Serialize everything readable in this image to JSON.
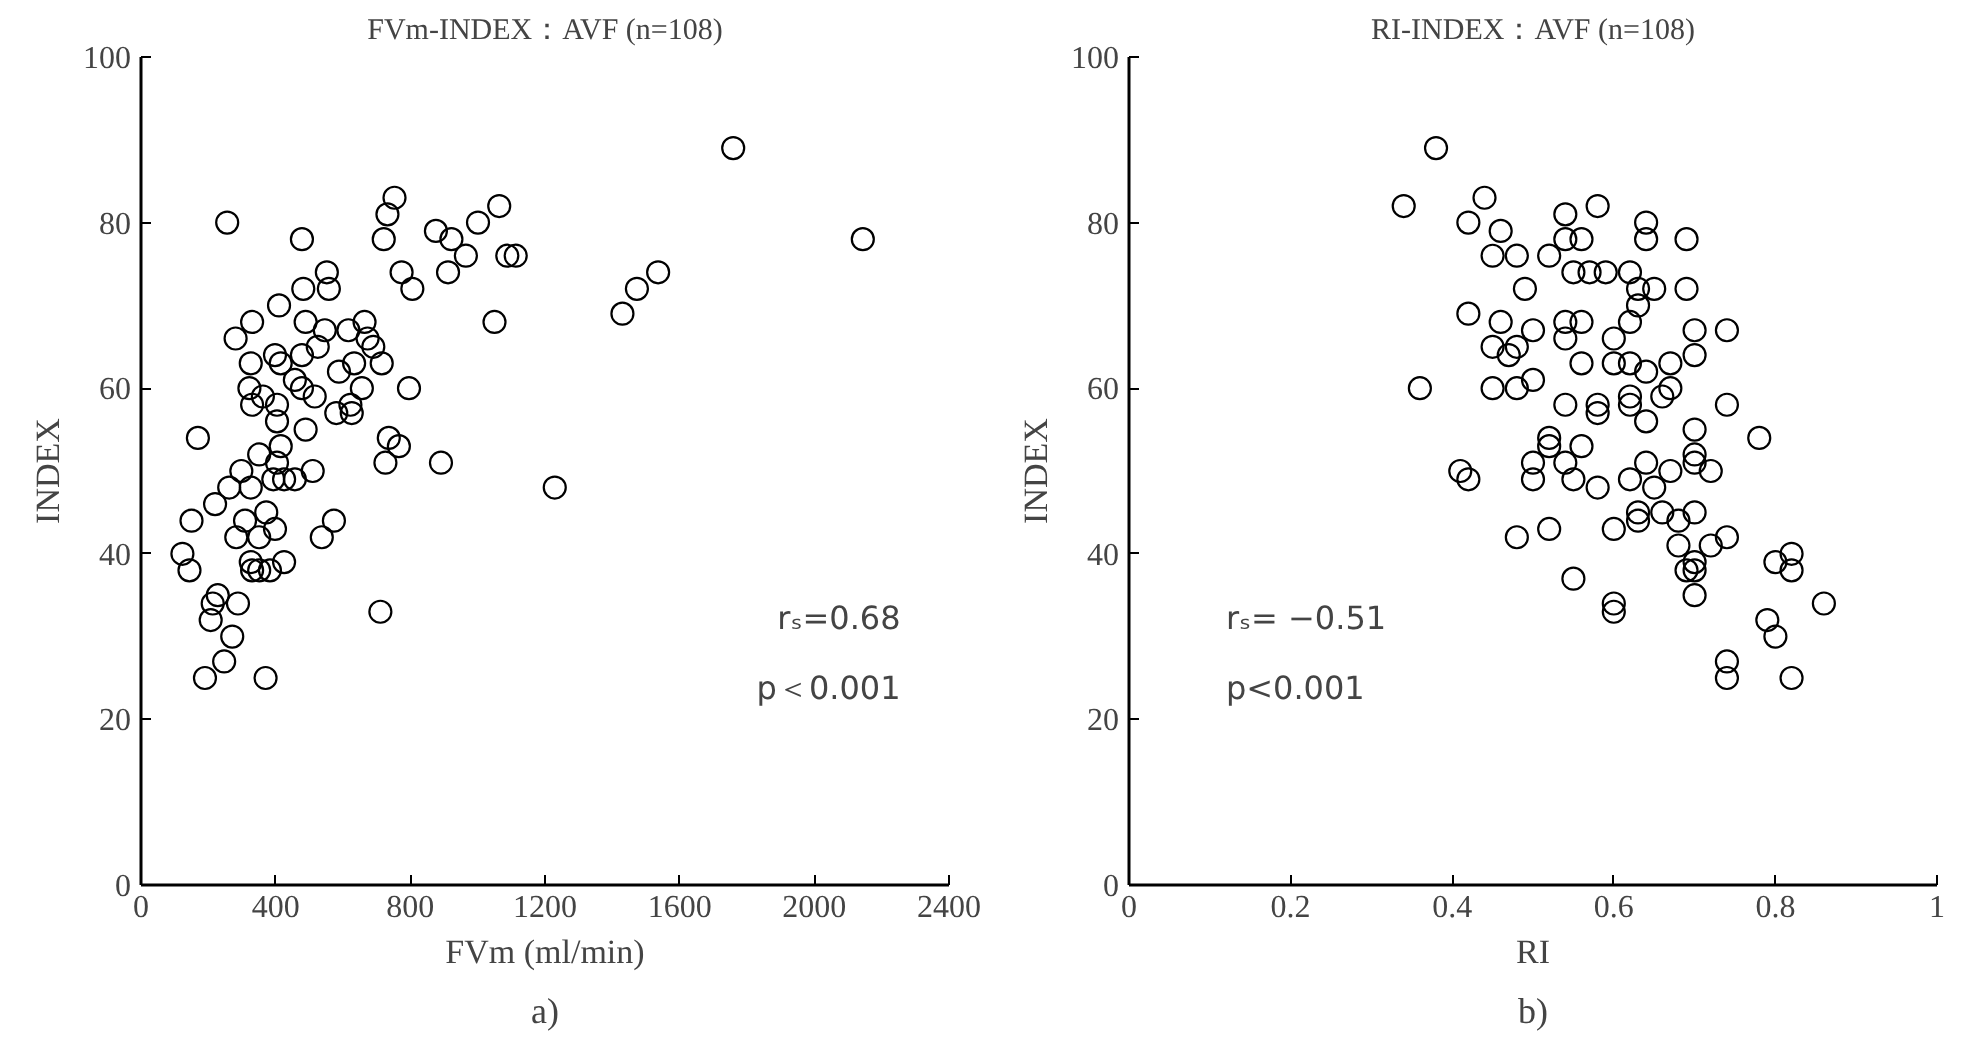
{
  "chart_data": [
    {
      "type": "scatter",
      "title": "FVm-INDEX：AVF (n=108)",
      "xlabel": "FVm (ml/min)",
      "ylabel": "INDEX",
      "xlim": [
        0,
        2400
      ],
      "xticks": [
        0,
        400,
        800,
        1200,
        1600,
        2000,
        2400
      ],
      "ylim": [
        0,
        100
      ],
      "yticks": [
        0,
        20,
        40,
        60,
        80,
        100
      ],
      "marker": "circle",
      "annotations": [
        "rₛ=0.68",
        "p＜0.001",
        "a)"
      ],
      "series": [
        {
          "color": "#000000",
          "x": [
            256,
            478,
            753,
            732,
            721,
            876,
            922,
            1001,
            1064,
            965,
            912,
            774,
            806,
            1088,
            1113,
            552,
            558,
            482,
            410,
            330,
            281,
            489,
            546,
            616,
            664,
            673,
            690,
            715,
            1050,
            1430,
            1473,
            1536,
            326,
            398,
            415,
            478,
            525,
            588,
            633,
            656,
            796,
            322,
            330,
            362,
            404,
            457,
            478,
            516,
            580,
            622,
            626,
            169,
            404,
            415,
            489,
            736,
            766,
            726,
            891,
            351,
            298,
            404,
            425,
            457,
            510,
            262,
            326,
            393,
            220,
            150,
            309,
            372,
            398,
            283,
            351,
            537,
            573,
            123,
            144,
            326,
            330,
            351,
            383,
            425,
            1229,
            228,
            213,
            288,
            207,
            271,
            711,
            247,
            190,
            370,
            1759,
            2144
          ],
          "values": [
            80,
            78,
            83,
            81,
            78,
            79,
            78,
            80,
            82,
            76,
            74,
            74,
            72,
            76,
            76,
            74,
            72,
            72,
            70,
            68,
            66,
            68,
            67,
            67,
            68,
            66,
            65,
            63,
            68,
            69,
            72,
            74,
            63,
            64,
            63,
            64,
            65,
            62,
            63,
            60,
            60,
            60,
            58,
            59,
            58,
            61,
            60,
            59,
            57,
            58,
            57,
            54,
            56,
            53,
            55,
            54,
            53,
            51,
            51,
            52,
            50,
            51,
            49,
            49,
            50,
            48,
            48,
            49,
            46,
            44,
            44,
            45,
            43,
            42,
            42,
            42,
            44,
            40,
            38,
            39,
            38,
            38,
            38,
            39,
            48,
            35,
            34,
            34,
            32,
            30,
            33,
            27,
            25,
            25,
            89,
            78
          ]
        }
      ]
    },
    {
      "type": "scatter",
      "title": "RI-INDEX：AVF (n=108)",
      "xlabel": "RI",
      "ylabel": "INDEX",
      "xlim": [
        0,
        1
      ],
      "xticks": [
        0,
        0.2,
        0.4,
        0.6,
        0.8,
        1
      ],
      "ylim": [
        0,
        100
      ],
      "yticks": [
        0,
        20,
        40,
        60,
        80,
        100
      ],
      "marker": "circle",
      "annotations": [
        "rₛ= −0.51",
        "p<0.001",
        "b)"
      ],
      "series": [
        {
          "color": "#000000",
          "x": [
            0.38,
            0.34,
            0.42,
            0.44,
            0.46,
            0.45,
            0.48,
            0.49,
            0.42,
            0.46,
            0.45,
            0.48,
            0.47,
            0.5,
            0.36,
            0.45,
            0.48,
            0.5,
            0.41,
            0.42,
            0.48,
            0.5,
            0.5,
            0.54,
            0.58,
            0.52,
            0.54,
            0.56,
            0.55,
            0.57,
            0.59,
            0.62,
            0.64,
            0.64,
            0.69,
            0.63,
            0.65,
            0.63,
            0.69,
            0.62,
            0.54,
            0.56,
            0.54,
            0.6,
            0.56,
            0.6,
            0.62,
            0.64,
            0.67,
            0.7,
            0.7,
            0.74,
            0.54,
            0.58,
            0.58,
            0.62,
            0.62,
            0.66,
            0.67,
            0.64,
            0.74,
            0.78,
            0.7,
            0.52,
            0.52,
            0.56,
            0.54,
            0.55,
            0.58,
            0.62,
            0.64,
            0.65,
            0.67,
            0.7,
            0.7,
            0.72,
            0.63,
            0.63,
            0.66,
            0.6,
            0.52,
            0.68,
            0.7,
            0.68,
            0.72,
            0.74,
            0.69,
            0.7,
            0.7,
            0.7,
            0.55,
            0.6,
            0.6,
            0.8,
            0.82,
            0.82,
            0.86,
            0.79,
            0.8,
            0.74,
            0.74,
            0.82
          ],
          "values": [
            89,
            82,
            80,
            83,
            79,
            76,
            76,
            72,
            69,
            68,
            65,
            65,
            64,
            67,
            60,
            60,
            60,
            61,
            50,
            49,
            42,
            49,
            51,
            81,
            82,
            76,
            78,
            78,
            74,
            74,
            74,
            74,
            80,
            78,
            78,
            72,
            72,
            70,
            72,
            68,
            68,
            68,
            66,
            66,
            63,
            63,
            63,
            62,
            63,
            67,
            64,
            67,
            58,
            58,
            57,
            59,
            58,
            59,
            60,
            56,
            58,
            54,
            55,
            54,
            53,
            53,
            51,
            49,
            48,
            49,
            51,
            48,
            50,
            52,
            51,
            50,
            45,
            44,
            45,
            43,
            43,
            44,
            45,
            41,
            41,
            42,
            38,
            39,
            38,
            35,
            37,
            34,
            33,
            39,
            40,
            38,
            34,
            32,
            30,
            27,
            25,
            25
          ]
        }
      ]
    }
  ]
}
